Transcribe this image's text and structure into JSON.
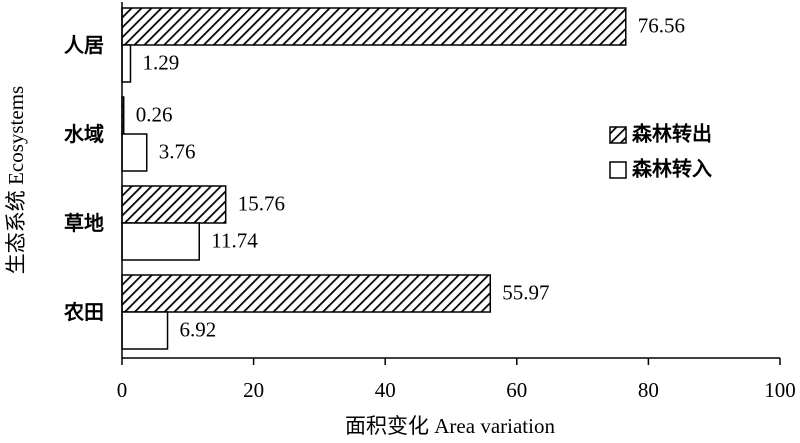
{
  "chart_data": {
    "type": "bar",
    "orientation": "horizontal",
    "x_label": "面积变化 Area variation",
    "y_label": "生态系统 Ecosystems",
    "categories": [
      "人居",
      "水域",
      "草地",
      "农田"
    ],
    "series": [
      {
        "name": "森林转出",
        "color": "#000000",
        "pattern": "hatch",
        "values": [
          76.56,
          0.26,
          15.76,
          55.97
        ]
      },
      {
        "name": "森林转入",
        "color": "#000000",
        "pattern": "none",
        "values": [
          1.29,
          3.76,
          11.74,
          6.92
        ]
      }
    ],
    "xlim": [
      0,
      100
    ],
    "xticks": [
      0,
      20,
      40,
      60,
      80,
      100
    ],
    "legend": "right"
  }
}
